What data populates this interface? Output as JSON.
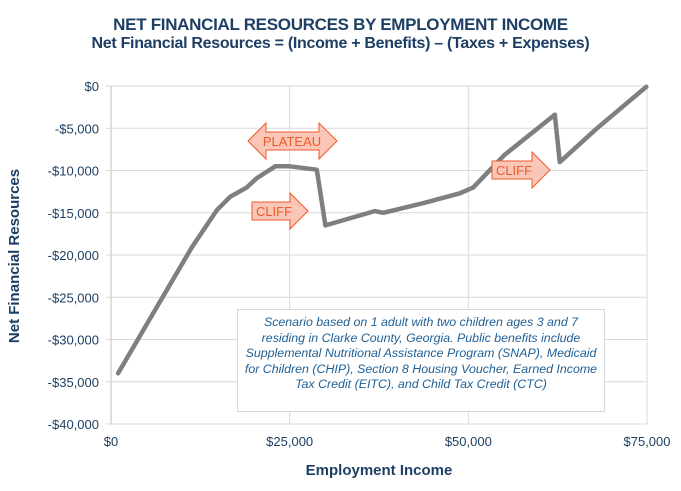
{
  "title": "NET FINANCIAL RESOURCES BY EMPLOYMENT INCOME",
  "subtitle": "Net Financial Resources = (Income + Benefits) – (Taxes + Expenses)",
  "note": "Scenario based on 1 adult with two children ages 3 and 7 residing in Clarke County, Georgia. Public benefits include Supplemental Nutritional Assistance Program (SNAP), Medicaid for Children (CHIP), Section 8 Housing Voucher, Earned Income Tax Credit (EITC), and Child Tax Credit (CTC)",
  "annotations": {
    "plateau": "PLATEAU",
    "cliff1": "CLIFF",
    "cliff2": "CLIFF"
  },
  "colors": {
    "line": "#7f7f7f",
    "text": "#1d3f63",
    "note_text": "#1f5f95",
    "arrow_fill": "#f9c6b7",
    "arrow_stroke": "#ec5b2b",
    "grid": "#d9d9d9"
  },
  "chart_data": {
    "type": "line",
    "title": "NET FINANCIAL RESOURCES BY EMPLOYMENT INCOME",
    "subtitle": "Net Financial Resources = (Income + Benefits) – (Taxes + Expenses)",
    "xlabel": "Employment Income",
    "ylabel": "Net Financial Resources",
    "xlim": [
      0,
      75000
    ],
    "ylim": [
      -40000,
      0
    ],
    "x_ticks": [
      "$0",
      "$25,000",
      "$50,000",
      "$75,000"
    ],
    "y_ticks": [
      "$0",
      "-$5,000",
      "-$10,000",
      "-$15,000",
      "-$20,000",
      "-$25,000",
      "-$30,000",
      "-$35,000",
      "-$40,000"
    ],
    "grid": true,
    "legend": null,
    "series": [
      {
        "name": "Net Financial Resources",
        "x": [
          1000,
          5900,
          11300,
          14800,
          16700,
          19000,
          20400,
          23000,
          25000,
          28800,
          30000,
          36900,
          38100,
          44000,
          48800,
          50700,
          55000,
          62100,
          62800,
          68000,
          74900
        ],
        "y": [
          -34000,
          -26900,
          -19100,
          -14700,
          -13100,
          -12000,
          -10900,
          -9500,
          -9500,
          -9900,
          -16500,
          -14800,
          -15000,
          -13800,
          -12700,
          -12000,
          -8200,
          -3400,
          -9000,
          -5000,
          -100
        ]
      }
    ],
    "annotations": [
      {
        "text": "PLATEAU",
        "type": "double-arrow",
        "x_range": [
          19500,
          32000
        ],
        "y": -6600
      },
      {
        "text": "CLIFF",
        "type": "right-arrow",
        "x_range": [
          19800,
          27700
        ],
        "y": -15000
      },
      {
        "text": "CLIFF",
        "type": "right-arrow",
        "x_range": [
          53300,
          61400
        ],
        "y": -10000
      }
    ]
  }
}
